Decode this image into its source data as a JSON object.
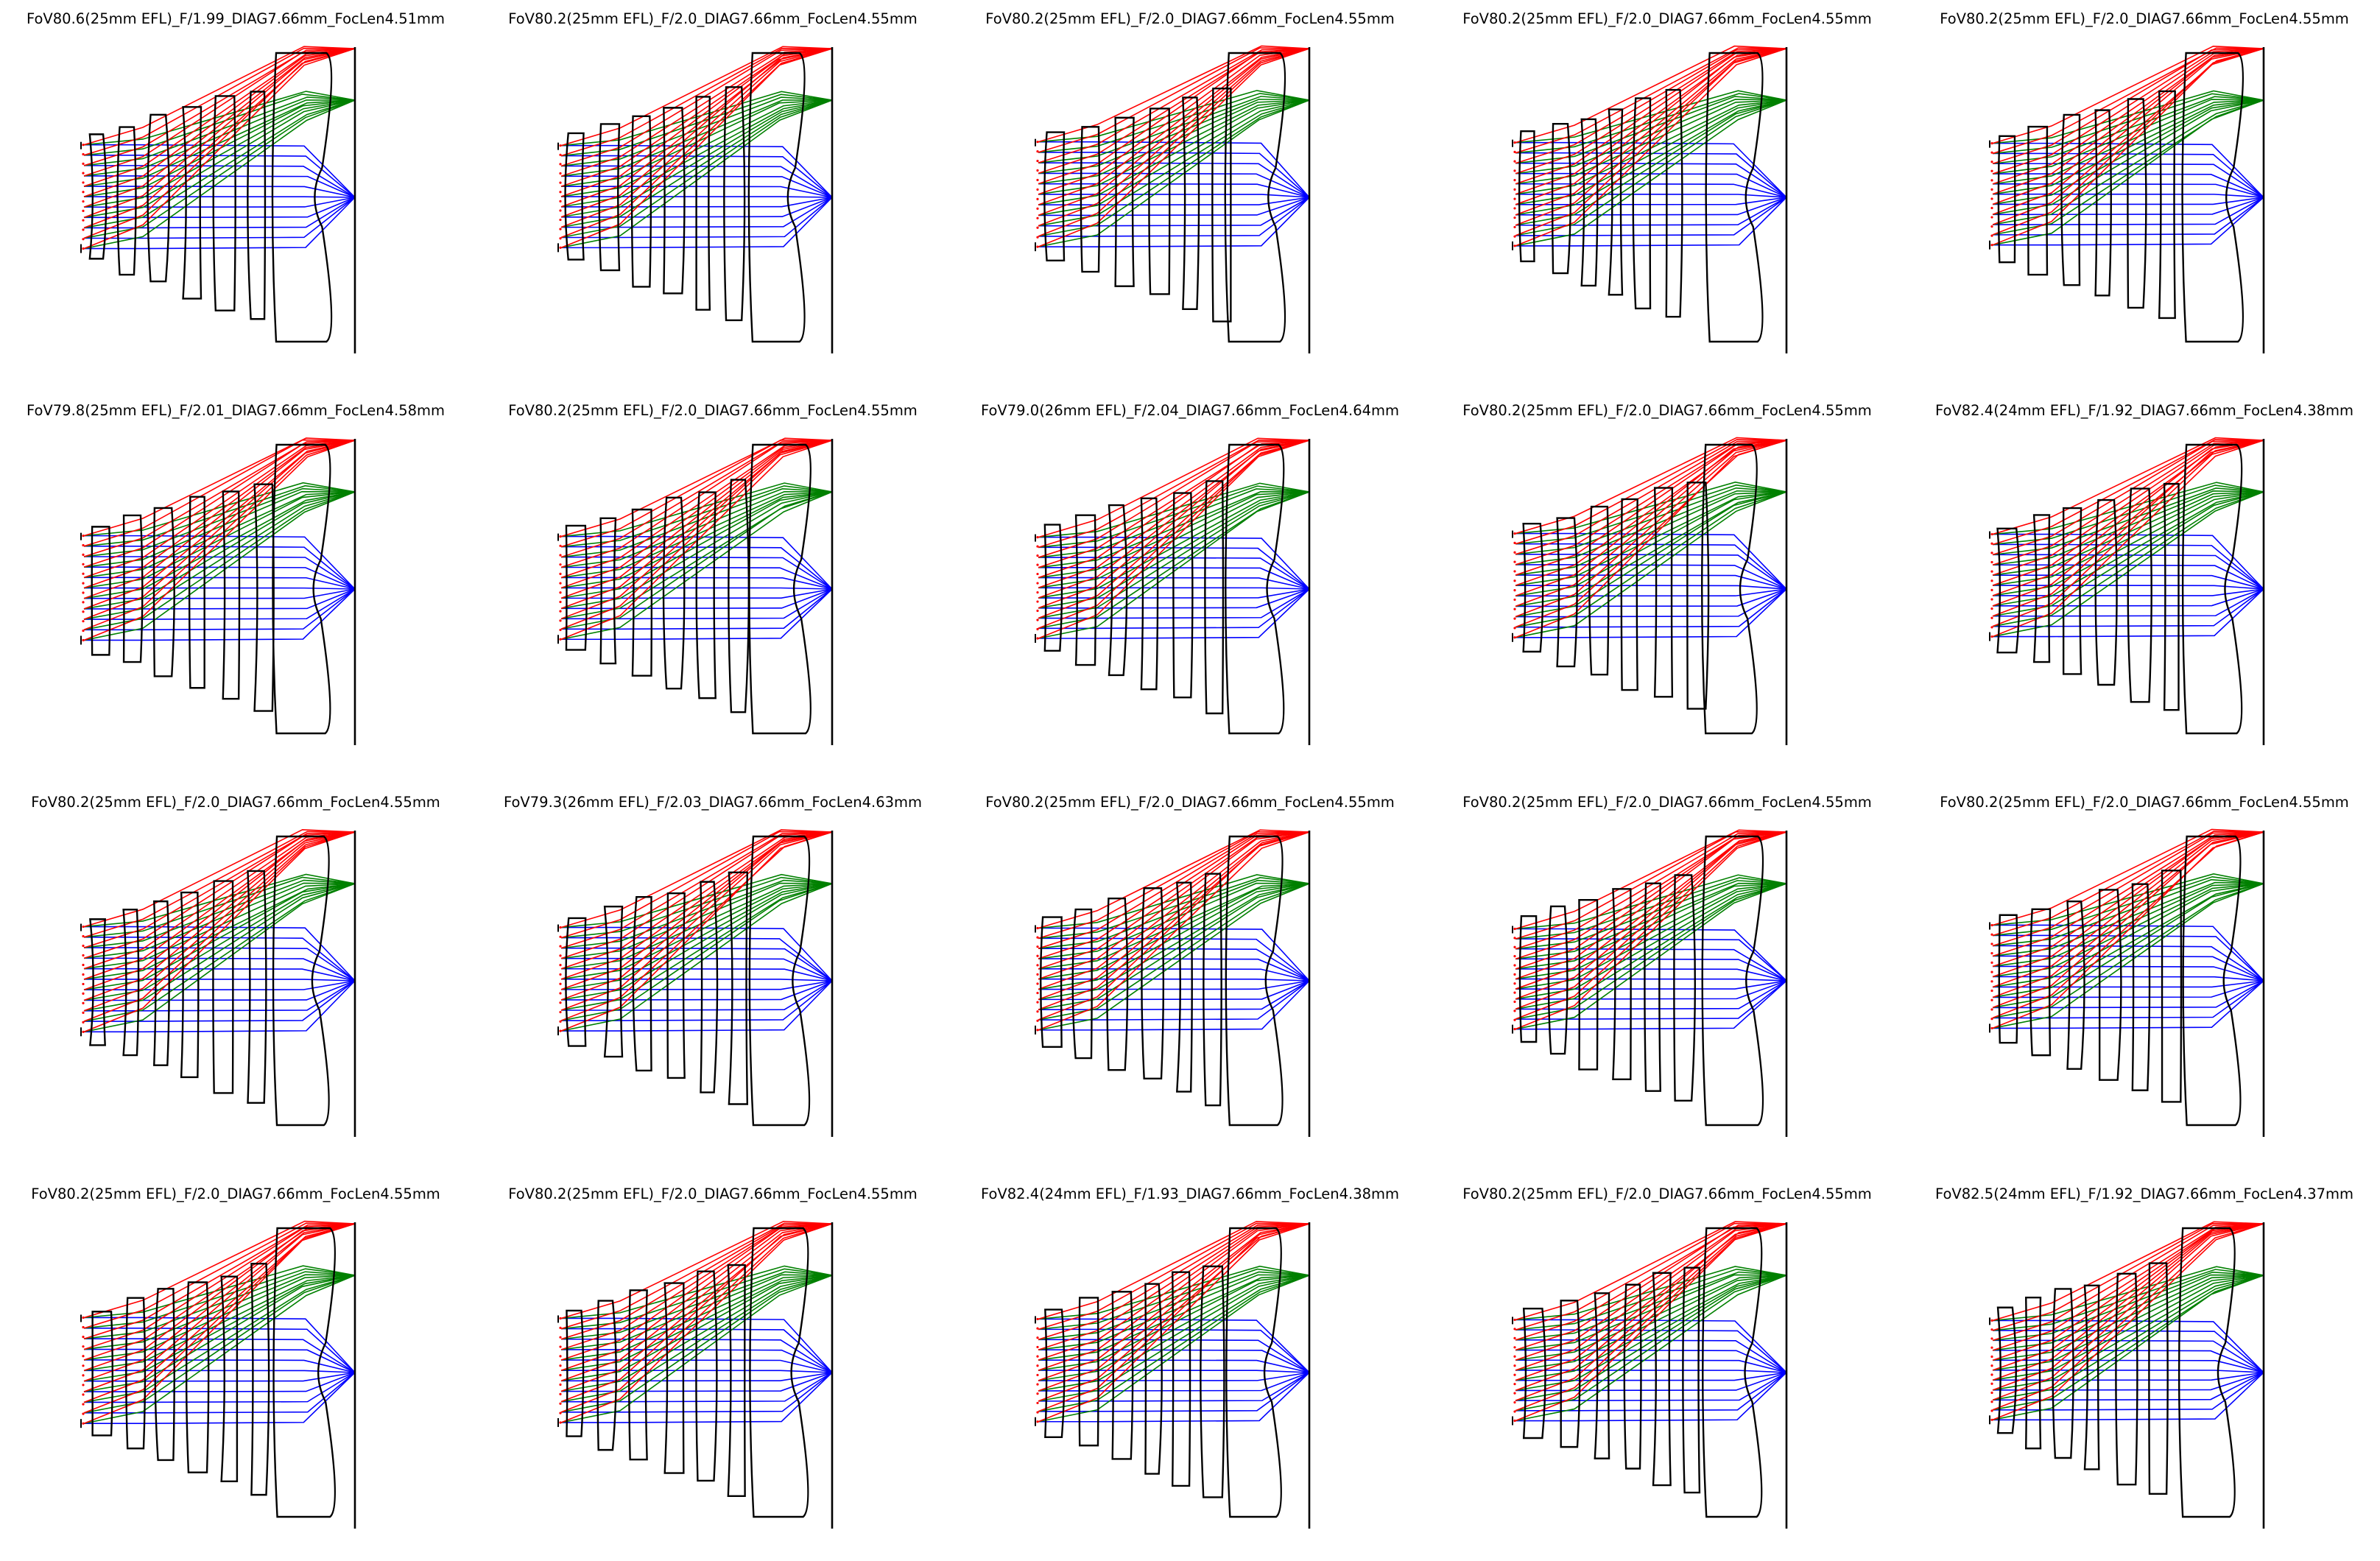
{
  "figure": {
    "description_free": true,
    "colors": {
      "on_axis_rays": "#0000ff",
      "mid_field_rays": "#008000",
      "full_field_rays": "#ff0000",
      "lens_outline": "#000000",
      "image_plane": "#000000"
    }
  },
  "panels": [
    {
      "title": "FoV80.6(25mm EFL)_F/1.99_DIAG7.66mm_FocLen4.51mm",
      "variant": 0
    },
    {
      "title": "FoV80.2(25mm EFL)_F/2.0_DIAG7.66mm_FocLen4.55mm",
      "variant": 1
    },
    {
      "title": "FoV80.2(25mm EFL)_F/2.0_DIAG7.66mm_FocLen4.55mm",
      "variant": 2
    },
    {
      "title": "FoV80.2(25mm EFL)_F/2.0_DIAG7.66mm_FocLen4.55mm",
      "variant": 3
    },
    {
      "title": "FoV80.2(25mm EFL)_F/2.0_DIAG7.66mm_FocLen4.55mm",
      "variant": 4
    },
    {
      "title": "FoV79.8(25mm EFL)_F/2.01_DIAG7.66mm_FocLen4.58mm",
      "variant": 5
    },
    {
      "title": "FoV80.2(25mm EFL)_F/2.0_DIAG7.66mm_FocLen4.55mm",
      "variant": 6
    },
    {
      "title": "FoV79.0(26mm EFL)_F/2.04_DIAG7.66mm_FocLen4.64mm",
      "variant": 7
    },
    {
      "title": "FoV80.2(25mm EFL)_F/2.0_DIAG7.66mm_FocLen4.55mm",
      "variant": 8
    },
    {
      "title": "FoV82.4(24mm EFL)_F/1.92_DIAG7.66mm_FocLen4.38mm",
      "variant": 9
    },
    {
      "title": "FoV80.2(25mm EFL)_F/2.0_DIAG7.66mm_FocLen4.55mm",
      "variant": 10
    },
    {
      "title": "FoV79.3(26mm EFL)_F/2.03_DIAG7.66mm_FocLen4.63mm",
      "variant": 11
    },
    {
      "title": "FoV80.2(25mm EFL)_F/2.0_DIAG7.66mm_FocLen4.55mm",
      "variant": 12
    },
    {
      "title": "FoV80.2(25mm EFL)_F/2.0_DIAG7.66mm_FocLen4.55mm",
      "variant": 13
    },
    {
      "title": "FoV80.2(25mm EFL)_F/2.0_DIAG7.66mm_FocLen4.55mm",
      "variant": 14
    },
    {
      "title": "FoV80.2(25mm EFL)_F/2.0_DIAG7.66mm_FocLen4.55mm",
      "variant": 15
    },
    {
      "title": "FoV80.2(25mm EFL)_F/2.0_DIAG7.66mm_FocLen4.55mm",
      "variant": 16
    },
    {
      "title": "FoV82.4(24mm EFL)_F/1.93_DIAG7.66mm_FocLen4.38mm",
      "variant": 17
    },
    {
      "title": "FoV80.2(25mm EFL)_F/2.0_DIAG7.66mm_FocLen4.55mm",
      "variant": 18
    },
    {
      "title": "FoV82.5(24mm EFL)_F/1.92_DIAG7.66mm_FocLen4.37mm",
      "variant": 19
    }
  ]
}
